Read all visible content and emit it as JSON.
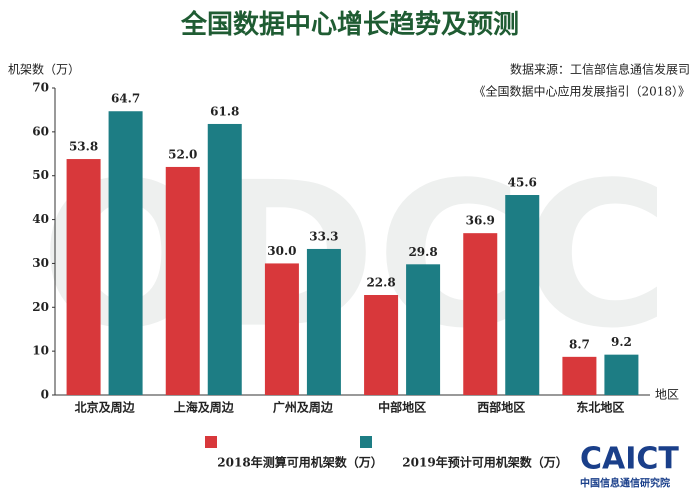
{
  "chart_data": {
    "type": "bar",
    "title": "全国数据中心增长趋势及预测",
    "y_label": "机架数（万）",
    "x_label": "地区",
    "source": [
      "数据来源：工信部信息通信发展司",
      "《全国数据中心应用发展指引（2018）》"
    ],
    "logo": "CAICT",
    "logo_subtitle": "中国信息通信研究院",
    "watermark": "ODCC",
    "categories": [
      "北京及周边",
      "上海及周边",
      "广州及周边",
      "中部地区",
      "西部地区",
      "东北地区"
    ],
    "series": [
      {
        "name": "2018年测算可用机架数（万）",
        "color": "#d8383b",
        "values": [
          53.8,
          52.0,
          30.0,
          22.8,
          36.9,
          8.7
        ],
        "value_labels": [
          "53.8",
          "52.0",
          "30.0",
          "22.8",
          "36.9",
          "8.7"
        ],
        "label_color": "#b5272b"
      },
      {
        "name": "2019年预计可用机架数（万）",
        "color": "#1d7d84",
        "values": [
          64.7,
          61.8,
          33.3,
          29.8,
          45.6,
          9.2
        ],
        "label_color": "#1d5f66"
      }
    ],
    "ylim": [
      0,
      70
    ],
    "yticks": [
      0,
      10,
      20,
      30,
      40,
      50,
      60,
      70
    ],
    "grid": false
  }
}
